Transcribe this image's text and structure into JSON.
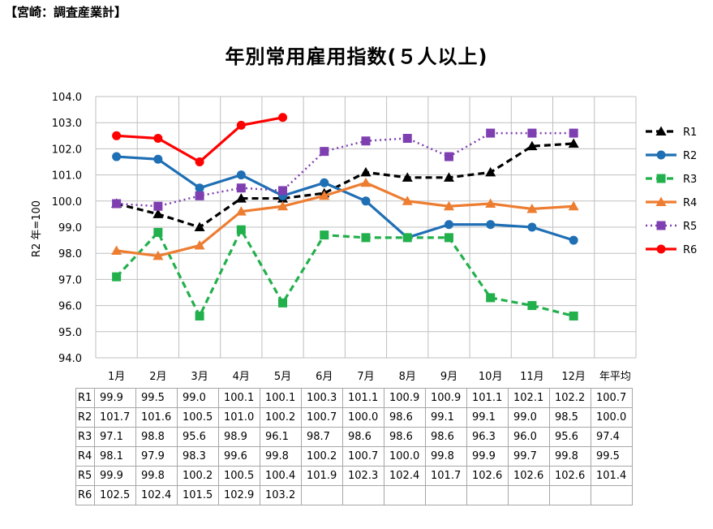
{
  "header": "【宮崎：調査産業計】",
  "chart_data": {
    "type": "line",
    "title": "年別常用雇用指数(５人以上)",
    "ylabel": "R2 年=100",
    "ylim": [
      94.0,
      104.0
    ],
    "ystep": 1.0,
    "categories": [
      "1月",
      "2月",
      "3月",
      "4月",
      "5月",
      "6月",
      "7月",
      "8月",
      "9月",
      "10月",
      "11月",
      "12月"
    ],
    "extra_column": "年平均",
    "legend_position": "right",
    "grid": true,
    "series": [
      {
        "name": "R1",
        "color": "#000000",
        "dash": "dash",
        "marker": "triangle",
        "values": [
          99.9,
          99.5,
          99.0,
          100.1,
          100.1,
          100.3,
          101.1,
          100.9,
          100.9,
          101.1,
          102.1,
          102.2
        ],
        "average": 100.7
      },
      {
        "name": "R2",
        "color": "#1f6fb4",
        "dash": "solid",
        "marker": "circle",
        "values": [
          101.7,
          101.6,
          100.5,
          101.0,
          100.2,
          100.7,
          100.0,
          98.6,
          99.1,
          99.1,
          99.0,
          98.5
        ],
        "average": 100.0
      },
      {
        "name": "R3",
        "color": "#22b04c",
        "dash": "dash",
        "marker": "square",
        "values": [
          97.1,
          98.8,
          95.6,
          98.9,
          96.1,
          98.7,
          98.6,
          98.6,
          98.6,
          96.3,
          96.0,
          95.6
        ],
        "average": 97.4
      },
      {
        "name": "R4",
        "color": "#ed7d31",
        "dash": "solid",
        "marker": "triangle",
        "values": [
          98.1,
          97.9,
          98.3,
          99.6,
          99.8,
          100.2,
          100.7,
          100.0,
          99.8,
          99.9,
          99.7,
          99.8
        ],
        "average": 99.5
      },
      {
        "name": "R5",
        "color": "#7e3fb0",
        "dash": "dot",
        "marker": "square",
        "values": [
          99.9,
          99.8,
          100.2,
          100.5,
          100.4,
          101.9,
          102.3,
          102.4,
          101.7,
          102.6,
          102.6,
          102.6
        ],
        "average": 101.4
      },
      {
        "name": "R6",
        "color": "#ff0000",
        "dash": "solid",
        "marker": "circle",
        "values": [
          102.5,
          102.4,
          101.5,
          102.9,
          103.2,
          null,
          null,
          null,
          null,
          null,
          null,
          null
        ],
        "average": null
      }
    ]
  }
}
